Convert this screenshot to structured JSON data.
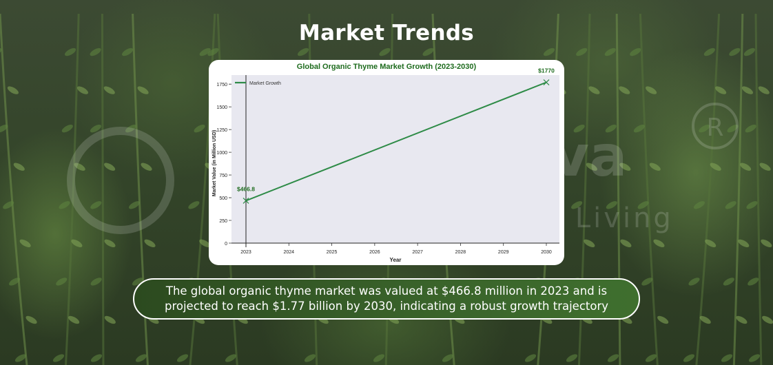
{
  "page": {
    "title": "Market Trends",
    "caption_lines": [
      "The global organic thyme market was valued at $466.8 million in 2023 and is",
      "projected to reach $1.77 billion by 2030, indicating a robust growth trajectory"
    ],
    "watermark": {
      "brand": "Greenjeeva",
      "tagline": "Promoting Healthy Living",
      "mark": "R"
    }
  },
  "colors": {
    "line": "#2e8b47",
    "plot_bg": "#e8e8f0",
    "title_green": "#1e6b1e",
    "caption_bg": "#39622a"
  },
  "chart_data": {
    "type": "line",
    "title": "Global Organic Thyme Market Growth (2023-2030)",
    "xlabel": "Year",
    "ylabel": "Market Value (in Million USD)",
    "x": [
      2023,
      2030
    ],
    "xticks": [
      "2023",
      "2024",
      "2025",
      "2026",
      "2027",
      "2028",
      "2029",
      "2030"
    ],
    "xlim": [
      2023,
      2030
    ],
    "yticks": [
      0,
      250,
      500,
      750,
      1000,
      1250,
      1500,
      1750
    ],
    "ylim": [
      0,
      1850
    ],
    "series": [
      {
        "name": "Market Growth",
        "values": [
          466.8,
          1770
        ],
        "marker": "x"
      }
    ],
    "annotations": [
      {
        "x": 2023,
        "y": 466.8,
        "text": "$466.8"
      },
      {
        "x": 2030,
        "y": 1770,
        "text": "$1770"
      }
    ],
    "legend": "top-left",
    "grid": false
  }
}
